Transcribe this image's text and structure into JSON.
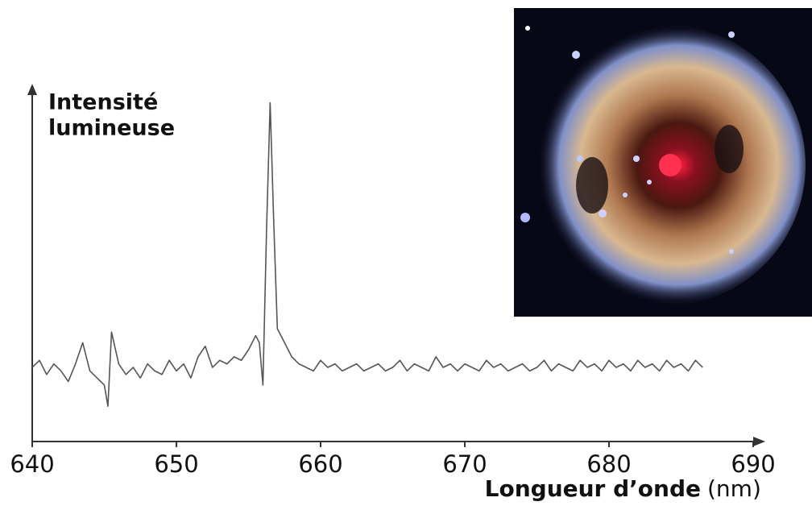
{
  "chart_data": {
    "type": "line",
    "y_label_lines": [
      "Intensité",
      "lumineuse"
    ],
    "x_label": "Longueur d’onde",
    "x_unit": "(nm)",
    "xlim": [
      640,
      690
    ],
    "xticks": [
      640,
      650,
      660,
      670,
      680,
      690
    ],
    "ylim": [
      0,
      100
    ],
    "color": "#555555",
    "x": [
      640,
      640.5,
      641,
      641.5,
      642,
      642.5,
      643,
      643.5,
      644,
      644.5,
      645,
      645.25,
      645.5,
      646,
      646.5,
      647,
      647.5,
      648,
      648.5,
      649,
      649.5,
      650,
      650.5,
      651,
      651.5,
      652,
      652.5,
      653,
      653.5,
      654,
      654.5,
      655,
      655.5,
      655.75,
      656,
      656.25,
      656.5,
      656.75,
      657,
      657.5,
      658,
      658.5,
      659,
      659.5,
      660,
      660.5,
      661,
      661.5,
      662,
      662.5,
      663,
      663.5,
      664,
      664.5,
      665,
      665.5,
      666,
      666.5,
      667,
      667.5,
      668,
      668.5,
      669,
      669.5,
      670,
      670.5,
      671,
      671.5,
      672,
      672.5,
      673,
      673.5,
      674,
      674.5,
      675,
      675.5,
      676,
      676.5,
      677,
      677.5,
      678,
      678.5,
      679,
      679.5,
      680,
      680.5,
      681,
      681.5,
      682,
      682.5,
      683,
      683.5,
      684,
      684.5,
      685,
      685.5,
      686,
      686.5
    ],
    "y": [
      21,
      23,
      19,
      22,
      20,
      17,
      22,
      28,
      20,
      18,
      16,
      10,
      31,
      22,
      19,
      21,
      18,
      22,
      20,
      19,
      23,
      20,
      22,
      18,
      24,
      27,
      21,
      23,
      22,
      24,
      23,
      26,
      30,
      28,
      16,
      60,
      96,
      62,
      32,
      28,
      24,
      22,
      21,
      20,
      23,
      21,
      22,
      20,
      21,
      22,
      20,
      21,
      22,
      20,
      21,
      23,
      20,
      22,
      21,
      20,
      24,
      21,
      22,
      20,
      22,
      21,
      20,
      23,
      21,
      22,
      20,
      21,
      22,
      20,
      21,
      23,
      20,
      22,
      21,
      20,
      23,
      21,
      22,
      20,
      23,
      21,
      22,
      20,
      23,
      21,
      22,
      20,
      23,
      21,
      22,
      20,
      23,
      21
    ]
  }
}
